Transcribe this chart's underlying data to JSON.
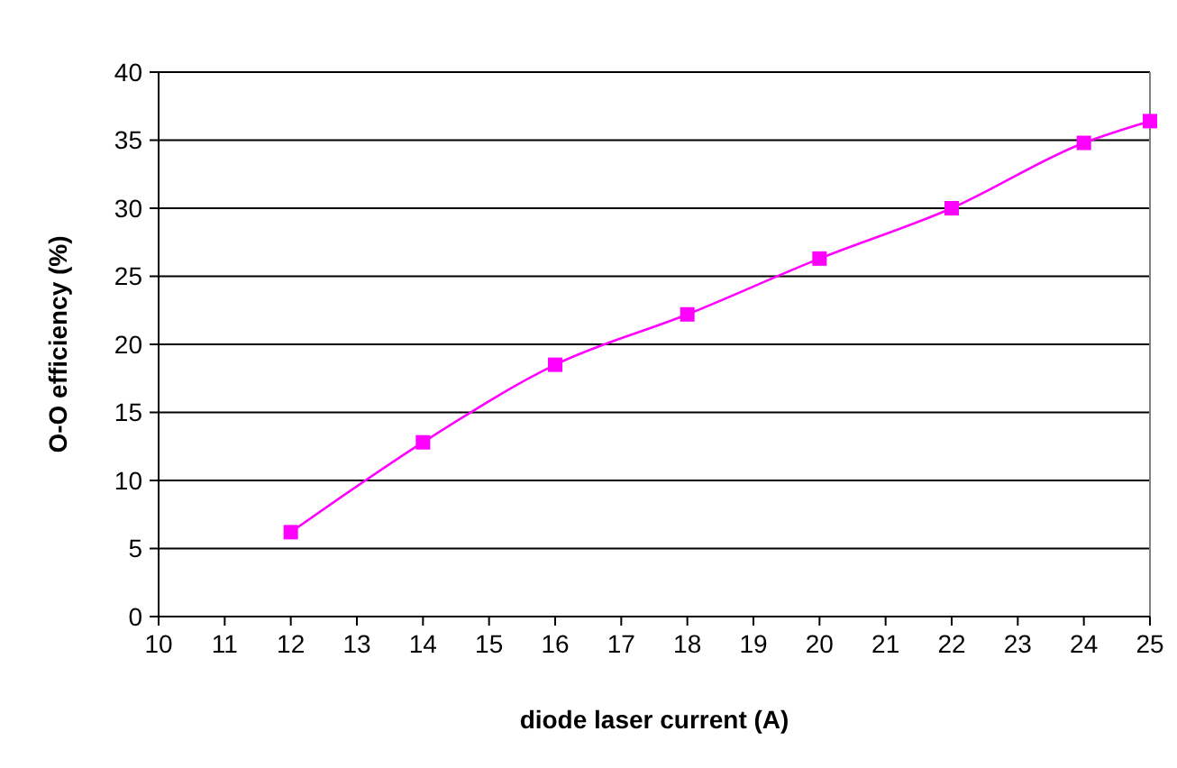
{
  "chart_data": {
    "type": "line",
    "xlabel": "diode laser current (A)",
    "ylabel": "O-O efficiency (%)",
    "x": [
      12,
      14,
      16,
      18,
      20,
      22,
      24,
      25
    ],
    "series": [
      {
        "color": "#ff00ff",
        "values": [
          6.2,
          12.8,
          18.5,
          22.2,
          26.3,
          30.0,
          34.8,
          36.4
        ]
      }
    ],
    "xlim": [
      10,
      25
    ],
    "xticks": [
      10,
      11,
      12,
      13,
      14,
      15,
      16,
      17,
      18,
      19,
      20,
      21,
      22,
      23,
      24,
      25
    ],
    "ylim": [
      0,
      40
    ],
    "yticks": [
      0,
      5,
      10,
      15,
      20,
      25,
      30,
      35,
      40
    ],
    "grid": "y",
    "marker": "square",
    "line_style": "solid"
  }
}
